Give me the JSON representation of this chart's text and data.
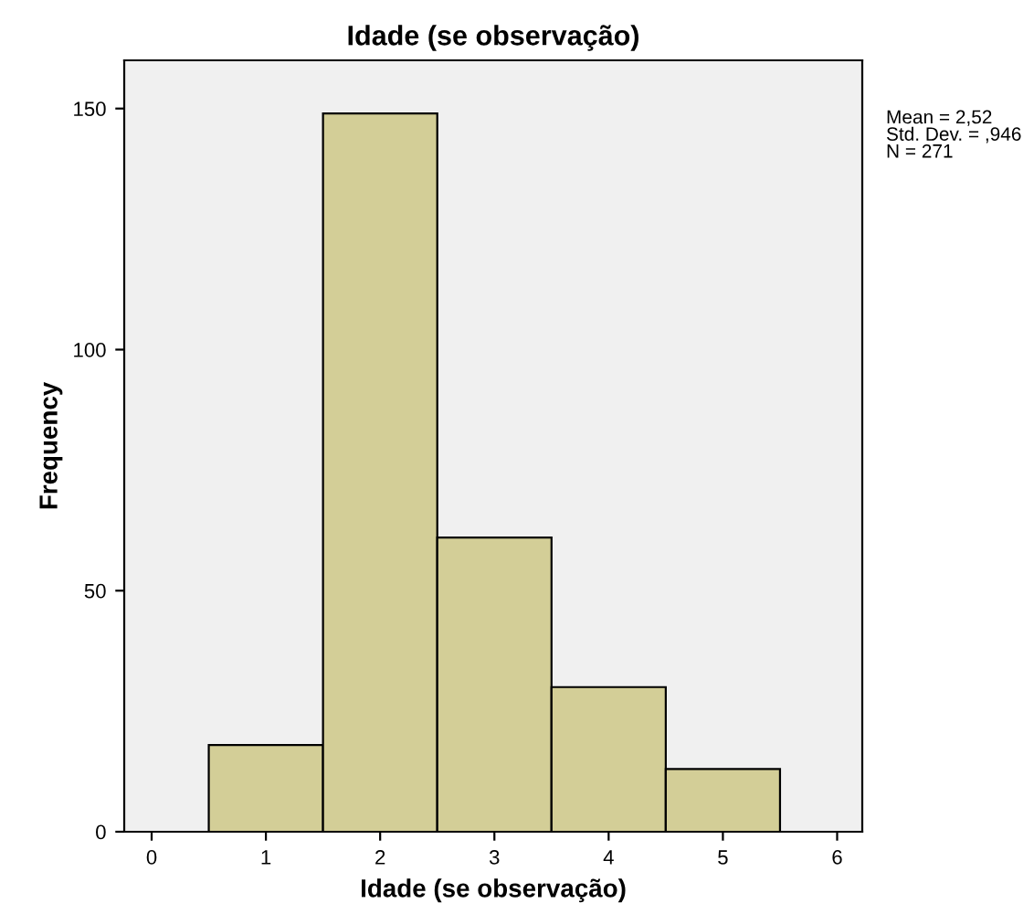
{
  "chart_data": {
    "type": "histogram",
    "title": "Idade (se observação)",
    "xlabel": "Idade (se observação)",
    "ylabel": "Frequency",
    "bins": [
      0.5,
      1.5,
      2.5,
      3.5,
      4.5,
      5.5
    ],
    "values": [
      18,
      149,
      61,
      30,
      13
    ],
    "color": "#d3ce97",
    "xlim": [
      -0.24,
      6.22
    ],
    "xticks": [
      0,
      1,
      2,
      3,
      4,
      5,
      6
    ],
    "ylim": [
      0,
      160
    ],
    "yticks": [
      0,
      50,
      100,
      150
    ],
    "grid": false,
    "annotations": [
      "Mean = 2,52\nStd. Dev. = ,946\nN = 271"
    ]
  }
}
